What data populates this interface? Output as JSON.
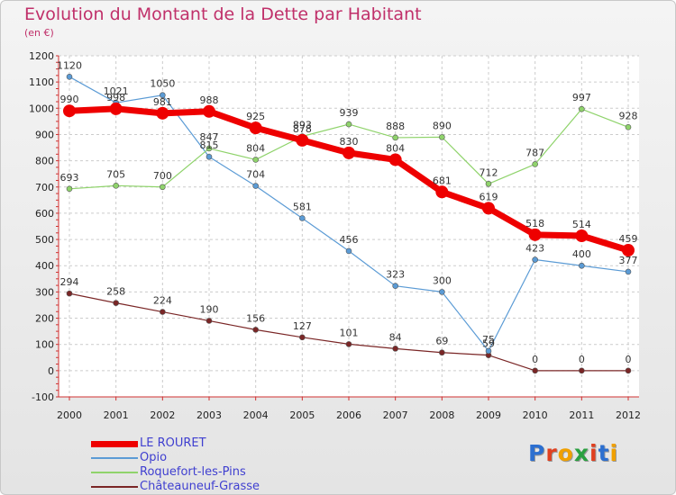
{
  "title": "Evolution du Montant de la Dette par Habitant",
  "subtitle": "(en €)",
  "logo": {
    "text": "Proxiti",
    "letter_colors": [
      "#2c6fd0",
      "#e04020",
      "#f0a000",
      "#2aa040",
      "#e04020",
      "#2c6fd0",
      "#f0a000"
    ]
  },
  "chart_data": {
    "type": "line",
    "x": [
      "2000",
      "2001",
      "2002",
      "2003",
      "2004",
      "2005",
      "2006",
      "2007",
      "2008",
      "2009",
      "2010",
      "2011",
      "2012"
    ],
    "ylim": [
      -100,
      1200
    ],
    "yticks": [
      -100,
      0,
      100,
      200,
      300,
      400,
      500,
      600,
      700,
      800,
      900,
      1000,
      1100,
      1200
    ],
    "grid": true,
    "legend_position": "bottom-left",
    "series": [
      {
        "name": "LE ROURET",
        "color": "#ee0000",
        "values": [
          990,
          998,
          981,
          988,
          925,
          878,
          830,
          804,
          681,
          619,
          518,
          514,
          459
        ]
      },
      {
        "name": "Opio",
        "color": "#5b9bd5",
        "values": [
          1120,
          1021,
          1050,
          815,
          704,
          581,
          456,
          323,
          300,
          75,
          423,
          400,
          377
        ]
      },
      {
        "name": "Roquefort-les-Pins",
        "color": "#8fd36b",
        "values": [
          693,
          705,
          700,
          847,
          804,
          893,
          939,
          888,
          890,
          712,
          787,
          997,
          928
        ]
      },
      {
        "name": "Châteauneuf-Grasse",
        "color": "#7a2626",
        "values": [
          294,
          258,
          224,
          190,
          156,
          127,
          101,
          84,
          69,
          59,
          0,
          0,
          0
        ]
      }
    ]
  }
}
